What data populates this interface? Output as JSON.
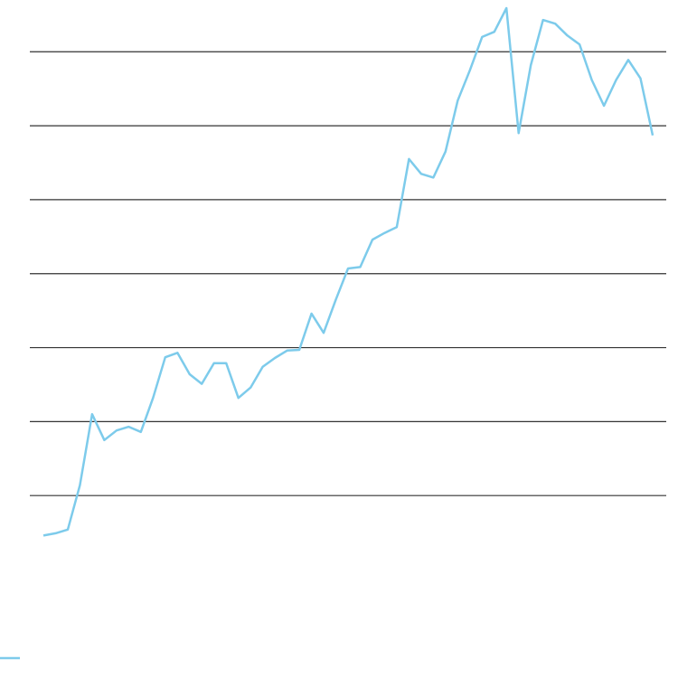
{
  "chart_data": {
    "type": "line",
    "x": [
      0,
      1,
      2,
      3,
      4,
      5,
      6,
      7,
      8,
      9,
      10,
      11,
      12,
      13,
      14,
      15,
      16,
      17,
      18,
      19,
      20,
      21,
      22,
      23,
      24,
      25,
      26,
      27,
      28,
      29,
      30,
      31,
      32,
      33,
      34,
      35,
      36,
      37,
      38,
      39,
      40,
      41,
      42,
      43,
      44,
      45,
      46,
      47,
      48,
      49,
      50
    ],
    "xlim": [
      0,
      50
    ],
    "series": [
      {
        "color": "#7dcbeb",
        "values": [
          0.46,
          0.49,
          0.54,
          1.14,
          2.1,
          1.75,
          1.88,
          1.93,
          1.86,
          2.32,
          2.87,
          2.93,
          2.64,
          2.51,
          2.79,
          2.79,
          2.32,
          2.46,
          2.74,
          2.86,
          2.96,
          2.97,
          3.46,
          3.2,
          3.65,
          4.07,
          4.09,
          4.46,
          4.55,
          4.63,
          5.55,
          5.35,
          5.3,
          5.65,
          6.34,
          6.75,
          7.2,
          7.27,
          7.59,
          5.9,
          6.82,
          7.43,
          7.38,
          7.22,
          7.1,
          6.62,
          6.27,
          6.62,
          6.89,
          6.64,
          5.87
        ]
      }
    ],
    "ylim": [
      0,
      7.7
    ],
    "yticks": [
      1,
      2,
      3,
      4,
      5,
      6,
      7
    ],
    "grid": true
  }
}
